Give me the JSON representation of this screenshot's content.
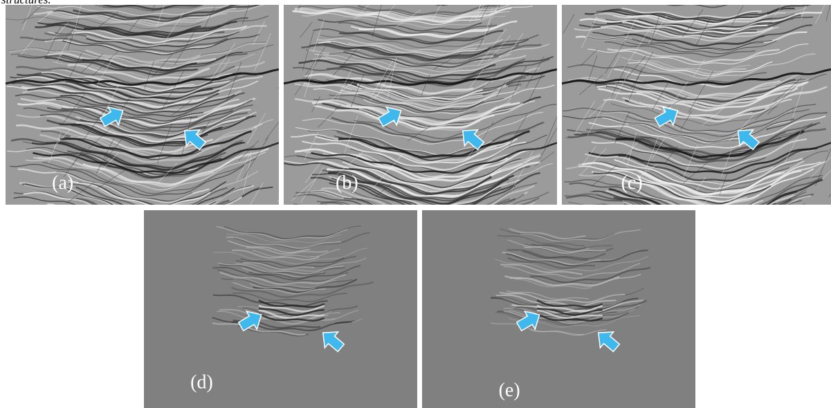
{
  "caption_fragment": "structures.",
  "panels": [
    {
      "label": "(a)"
    },
    {
      "label": "(b)"
    },
    {
      "label": "(c)"
    },
    {
      "label": "(d)"
    },
    {
      "label": "(e)"
    }
  ]
}
